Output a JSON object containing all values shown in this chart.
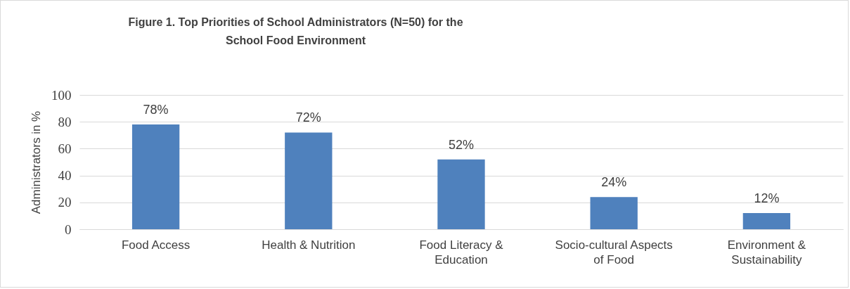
{
  "chart_data": {
    "type": "bar",
    "title": "Figure 1. Top Priorities of School Administrators (N=50) for the School Food Environment",
    "ylabel": "Administrators in %",
    "categories": [
      "Food Access",
      "Health & Nutrition",
      "Food Literacy & Education",
      "Socio-cultural Aspects of Food",
      "Environment & Sustainability"
    ],
    "values": [
      78,
      72,
      52,
      24,
      12
    ],
    "value_labels": [
      "78%",
      "72%",
      "52%",
      "24%",
      "12%"
    ],
    "color": "#4f81bd",
    "ylim": [
      0,
      100
    ],
    "yticks": [
      0,
      20,
      40,
      60,
      80,
      100
    ],
    "grid": "y"
  }
}
